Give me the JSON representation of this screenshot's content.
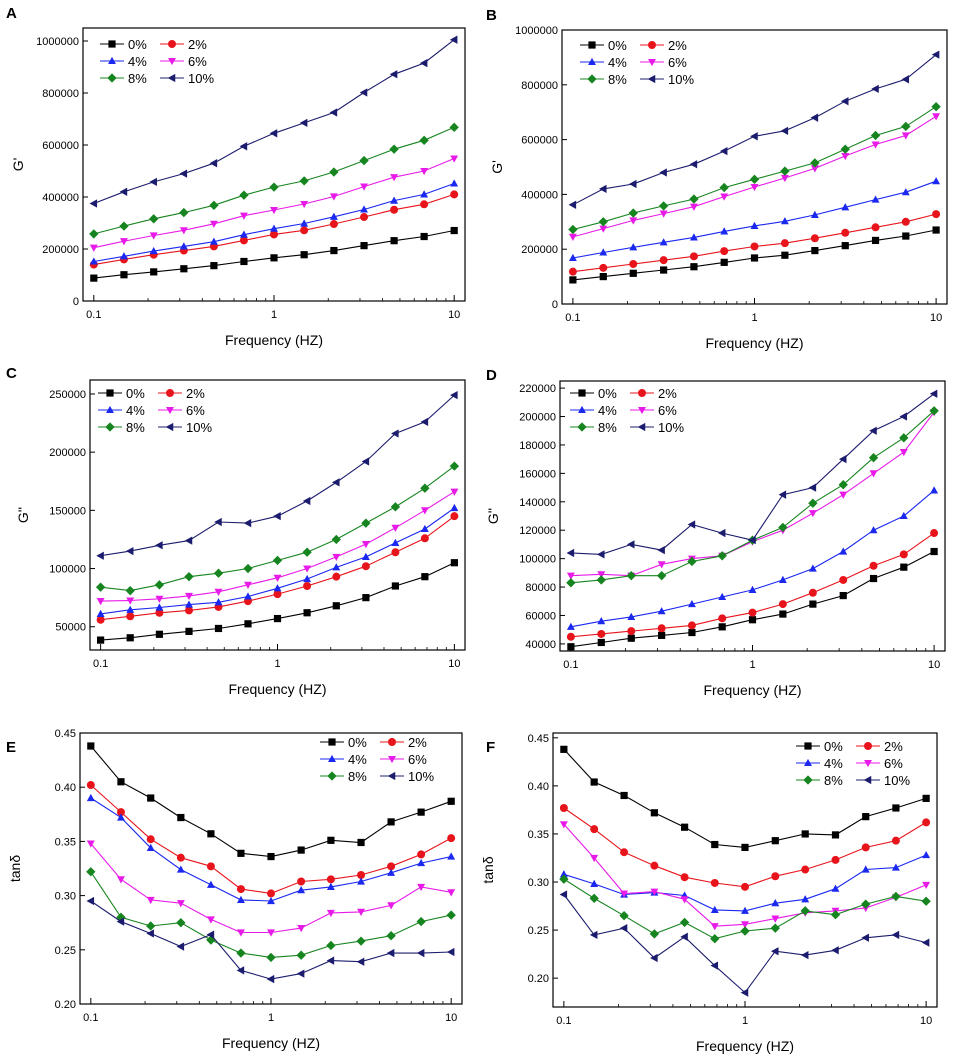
{
  "colors": {
    "0%": "#000000",
    "2%": "#e8141b",
    "4%": "#1a28f0",
    "6%": "#e81ae8",
    "8%": "#17851f",
    "10%": "#1c1c6e"
  },
  "chart_data": [
    {
      "panel": "A",
      "type": "line",
      "xscale": "log",
      "xlabel": "Frequency (HZ)",
      "ylabel": "G'",
      "xticks": [
        0.1,
        1,
        10
      ],
      "xtick_labels": [
        "0.1",
        "1",
        "10"
      ],
      "ylim": [
        0,
        1050000
      ],
      "yticks": [
        0,
        200000,
        400000,
        600000,
        800000,
        1000000
      ],
      "ytick_labels": [
        "0",
        "200000",
        "400000",
        "600000",
        "800000",
        "1000000"
      ],
      "legend_pos": "top-left",
      "x": [
        0.1,
        0.147,
        0.215,
        0.316,
        0.464,
        0.681,
        1,
        1.47,
        2.15,
        3.16,
        4.64,
        6.81,
        10
      ],
      "series": [
        {
          "name": "0%",
          "marker": "square",
          "values": [
            88000,
            101000,
            112000,
            124000,
            136000,
            152000,
            166000,
            178000,
            194000,
            213000,
            232000,
            248000,
            271000
          ]
        },
        {
          "name": "2%",
          "marker": "circle",
          "values": [
            140000,
            160000,
            178000,
            194000,
            210000,
            233000,
            256000,
            272000,
            296000,
            323000,
            351000,
            372000,
            410000
          ]
        },
        {
          "name": "4%",
          "marker": "triangle-up",
          "values": [
            152000,
            172000,
            192000,
            210000,
            228000,
            255000,
            278000,
            298000,
            324000,
            352000,
            386000,
            410000,
            452000
          ]
        },
        {
          "name": "6%",
          "marker": "triangle-down",
          "values": [
            205000,
            230000,
            252000,
            272000,
            297000,
            328000,
            350000,
            373000,
            402000,
            440000,
            476000,
            500000,
            548000
          ]
        },
        {
          "name": "8%",
          "marker": "diamond",
          "values": [
            258000,
            288000,
            316000,
            340000,
            368000,
            407000,
            438000,
            462000,
            496000,
            540000,
            584000,
            618000,
            668000
          ]
        },
        {
          "name": "10%",
          "marker": "triangle-left",
          "values": [
            375000,
            420000,
            458000,
            490000,
            530000,
            595000,
            645000,
            685000,
            725000,
            802000,
            872000,
            915000,
            1005000
          ]
        }
      ]
    },
    {
      "panel": "B",
      "type": "line",
      "xscale": "log",
      "xlabel": "Frequency (HZ)",
      "ylabel": "G'",
      "xticks": [
        0.1,
        1,
        10
      ],
      "xtick_labels": [
        "0.1",
        "1",
        "10"
      ],
      "ylim": [
        0,
        1000000
      ],
      "yticks": [
        0,
        200000,
        400000,
        600000,
        800000,
        1000000
      ],
      "ytick_labels": [
        "0",
        "200000",
        "400000",
        "600000",
        "800000",
        "1000000"
      ],
      "legend_pos": "top-left",
      "x": [
        0.1,
        0.147,
        0.215,
        0.316,
        0.464,
        0.681,
        1,
        1.47,
        2.15,
        3.16,
        4.64,
        6.81,
        10
      ],
      "series": [
        {
          "name": "0%",
          "marker": "square",
          "values": [
            88000,
            100000,
            112000,
            124000,
            136000,
            152000,
            168000,
            178000,
            195000,
            213000,
            232000,
            248000,
            270000
          ]
        },
        {
          "name": "2%",
          "marker": "circle",
          "values": [
            118000,
            132000,
            146000,
            160000,
            174000,
            193000,
            210000,
            222000,
            240000,
            260000,
            280000,
            300000,
            328000
          ]
        },
        {
          "name": "4%",
          "marker": "triangle-up",
          "values": [
            168000,
            188000,
            207000,
            225000,
            243000,
            265000,
            285000,
            302000,
            325000,
            353000,
            381000,
            408000,
            448000
          ]
        },
        {
          "name": "6%",
          "marker": "triangle-down",
          "values": [
            245000,
            275000,
            305000,
            330000,
            355000,
            392000,
            427000,
            460000,
            495000,
            540000,
            582000,
            615000,
            685000
          ]
        },
        {
          "name": "8%",
          "marker": "diamond",
          "values": [
            272000,
            300000,
            332000,
            358000,
            383000,
            425000,
            455000,
            485000,
            515000,
            565000,
            615000,
            648000,
            720000
          ]
        },
        {
          "name": "10%",
          "marker": "triangle-left",
          "values": [
            362000,
            420000,
            438000,
            480000,
            510000,
            558000,
            612000,
            632000,
            680000,
            740000,
            785000,
            820000,
            910000
          ]
        }
      ]
    },
    {
      "panel": "C",
      "type": "line",
      "xscale": "log",
      "xlabel": "Frequency (HZ)",
      "ylabel": "G''",
      "xticks": [
        0.1,
        1,
        10
      ],
      "xtick_labels": [
        "0.1",
        "1",
        "10"
      ],
      "ylim": [
        30000,
        262000
      ],
      "yticks": [
        50000,
        100000,
        150000,
        200000,
        250000
      ],
      "ytick_labels": [
        "50000",
        "100000",
        "150000",
        "200000",
        "250000"
      ],
      "legend_pos": "top-left",
      "x": [
        0.1,
        0.147,
        0.215,
        0.316,
        0.464,
        0.681,
        1,
        1.47,
        2.15,
        3.16,
        4.64,
        6.81,
        10
      ],
      "series": [
        {
          "name": "0%",
          "marker": "square",
          "values": [
            38500,
            40500,
            43500,
            46000,
            48500,
            52500,
            57000,
            62000,
            68000,
            75000,
            85000,
            93000,
            105000
          ]
        },
        {
          "name": "2%",
          "marker": "circle",
          "values": [
            56000,
            59000,
            62000,
            64000,
            67000,
            72000,
            78000,
            85000,
            93000,
            102000,
            114000,
            126000,
            145000
          ]
        },
        {
          "name": "4%",
          "marker": "triangle-up",
          "values": [
            61000,
            64500,
            66500,
            69000,
            71000,
            76000,
            83000,
            91000,
            101000,
            110000,
            122000,
            134000,
            152000
          ]
        },
        {
          "name": "6%",
          "marker": "triangle-down",
          "values": [
            72000,
            72500,
            74000,
            76500,
            80000,
            86000,
            92000,
            100000,
            110000,
            121000,
            135000,
            150000,
            166000
          ]
        },
        {
          "name": "8%",
          "marker": "diamond",
          "values": [
            84000,
            81000,
            86000,
            93000,
            96000,
            100000,
            107000,
            114000,
            125000,
            139000,
            153000,
            169000,
            188000
          ]
        },
        {
          "name": "10%",
          "marker": "triangle-left",
          "values": [
            111000,
            115000,
            120000,
            124000,
            140000,
            139000,
            145000,
            158000,
            174000,
            192000,
            216000,
            226000,
            249000
          ]
        }
      ]
    },
    {
      "panel": "D",
      "type": "line",
      "xscale": "log",
      "xlabel": "Frequency (HZ)",
      "ylabel": "G''",
      "xticks": [
        0.1,
        1,
        10
      ],
      "xtick_labels": [
        "0.1",
        "1",
        "10"
      ],
      "ylim": [
        35000,
        225000
      ],
      "yticks": [
        40000,
        60000,
        80000,
        100000,
        120000,
        140000,
        160000,
        180000,
        200000,
        220000
      ],
      "ytick_labels": [
        "40000",
        "60000",
        "80000",
        "100000",
        "120000",
        "140000",
        "160000",
        "180000",
        "200000",
        "220000"
      ],
      "legend_pos": "top-left",
      "x": [
        0.1,
        0.147,
        0.215,
        0.316,
        0.464,
        0.681,
        1,
        1.47,
        2.15,
        3.16,
        4.64,
        6.81,
        10
      ],
      "series": [
        {
          "name": "0%",
          "marker": "square",
          "values": [
            38000,
            41000,
            44000,
            46000,
            48000,
            52000,
            57000,
            61000,
            68000,
            74000,
            86000,
            94000,
            105000
          ]
        },
        {
          "name": "2%",
          "marker": "circle",
          "values": [
            45000,
            47000,
            49000,
            51000,
            53000,
            58000,
            62000,
            68000,
            76000,
            85000,
            95000,
            103000,
            118000
          ]
        },
        {
          "name": "4%",
          "marker": "triangle-up",
          "values": [
            52000,
            56000,
            59000,
            63000,
            68000,
            73000,
            78000,
            85000,
            93000,
            105000,
            120000,
            130000,
            148000
          ]
        },
        {
          "name": "6%",
          "marker": "triangle-down",
          "values": [
            88000,
            89000,
            88000,
            96000,
            100000,
            102000,
            112000,
            120000,
            132000,
            145000,
            160000,
            175000,
            203000
          ]
        },
        {
          "name": "8%",
          "marker": "diamond",
          "values": [
            83000,
            85000,
            88000,
            88000,
            98000,
            102000,
            113000,
            122000,
            139000,
            152000,
            171000,
            185000,
            204000
          ]
        },
        {
          "name": "10%",
          "marker": "triangle-left",
          "values": [
            104000,
            103000,
            110000,
            106000,
            124000,
            118000,
            113000,
            145000,
            150000,
            170000,
            190000,
            200000,
            216000
          ]
        }
      ]
    },
    {
      "panel": "E",
      "type": "line",
      "xscale": "log",
      "xlabel": "Frequency (HZ)",
      "ylabel": "tanδ",
      "xticks": [
        0.1,
        1,
        10
      ],
      "xtick_labels": [
        "0.1",
        "1",
        "10"
      ],
      "ylim": [
        0.2,
        0.45
      ],
      "yticks": [
        0.2,
        0.25,
        0.3,
        0.35,
        0.4,
        0.45
      ],
      "ytick_labels": [
        "0.20",
        "0.25",
        "0.30",
        "0.35",
        "0.40",
        "0.45"
      ],
      "legend_pos": "top-right",
      "x": [
        0.1,
        0.147,
        0.215,
        0.316,
        0.464,
        0.681,
        1,
        1.47,
        2.15,
        3.16,
        4.64,
        6.81,
        10
      ],
      "series": [
        {
          "name": "0%",
          "marker": "square",
          "values": [
            0.438,
            0.405,
            0.39,
            0.372,
            0.357,
            0.339,
            0.336,
            0.342,
            0.351,
            0.349,
            0.368,
            0.377,
            0.387
          ]
        },
        {
          "name": "2%",
          "marker": "circle",
          "values": [
            0.402,
            0.377,
            0.352,
            0.335,
            0.327,
            0.306,
            0.302,
            0.313,
            0.315,
            0.319,
            0.327,
            0.338,
            0.353
          ]
        },
        {
          "name": "4%",
          "marker": "triangle-up",
          "values": [
            0.39,
            0.372,
            0.344,
            0.324,
            0.31,
            0.296,
            0.295,
            0.305,
            0.308,
            0.313,
            0.321,
            0.33,
            0.336
          ]
        },
        {
          "name": "6%",
          "marker": "triangle-down",
          "values": [
            0.348,
            0.315,
            0.296,
            0.293,
            0.278,
            0.266,
            0.266,
            0.27,
            0.284,
            0.285,
            0.291,
            0.308,
            0.303
          ]
        },
        {
          "name": "8%",
          "marker": "diamond",
          "values": [
            0.322,
            0.28,
            0.272,
            0.275,
            0.259,
            0.247,
            0.243,
            0.245,
            0.254,
            0.258,
            0.263,
            0.276,
            0.282
          ]
        },
        {
          "name": "10%",
          "marker": "triangle-left",
          "values": [
            0.295,
            0.276,
            0.265,
            0.253,
            0.264,
            0.231,
            0.223,
            0.228,
            0.24,
            0.239,
            0.247,
            0.247,
            0.248
          ]
        }
      ]
    },
    {
      "panel": "F",
      "type": "line",
      "xscale": "log",
      "xlabel": "Frequency (HZ)",
      "ylabel": "tanδ",
      "xticks": [
        0.1,
        1,
        10
      ],
      "xtick_labels": [
        "0.1",
        "1",
        "10"
      ],
      "ylim": [
        0.17,
        0.455
      ],
      "yticks": [
        0.2,
        0.25,
        0.3,
        0.35,
        0.4,
        0.45
      ],
      "ytick_labels": [
        "0.20",
        "0.25",
        "0.30",
        "0.35",
        "0.40",
        "0.45"
      ],
      "legend_pos": "top-right",
      "x": [
        0.1,
        0.147,
        0.215,
        0.316,
        0.464,
        0.681,
        1,
        1.47,
        2.15,
        3.16,
        4.64,
        6.81,
        10
      ],
      "series": [
        {
          "name": "0%",
          "marker": "square",
          "values": [
            0.438,
            0.404,
            0.39,
            0.372,
            0.357,
            0.339,
            0.336,
            0.343,
            0.35,
            0.349,
            0.368,
            0.377,
            0.387
          ]
        },
        {
          "name": "2%",
          "marker": "circle",
          "values": [
            0.377,
            0.355,
            0.331,
            0.317,
            0.305,
            0.299,
            0.295,
            0.306,
            0.313,
            0.323,
            0.336,
            0.343,
            0.362
          ]
        },
        {
          "name": "4%",
          "marker": "triangle-up",
          "values": [
            0.308,
            0.298,
            0.287,
            0.289,
            0.286,
            0.271,
            0.27,
            0.278,
            0.282,
            0.293,
            0.313,
            0.315,
            0.328
          ]
        },
        {
          "name": "6%",
          "marker": "triangle-down",
          "values": [
            0.36,
            0.325,
            0.288,
            0.29,
            0.282,
            0.254,
            0.256,
            0.262,
            0.268,
            0.27,
            0.273,
            0.284,
            0.297
          ]
        },
        {
          "name": "8%",
          "marker": "diamond",
          "values": [
            0.303,
            0.283,
            0.265,
            0.246,
            0.258,
            0.241,
            0.249,
            0.252,
            0.27,
            0.266,
            0.277,
            0.285,
            0.28
          ]
        },
        {
          "name": "10%",
          "marker": "triangle-left",
          "values": [
            0.287,
            0.245,
            0.252,
            0.221,
            0.243,
            0.213,
            0.185,
            0.228,
            0.224,
            0.229,
            0.242,
            0.245,
            0.237
          ]
        }
      ]
    }
  ]
}
